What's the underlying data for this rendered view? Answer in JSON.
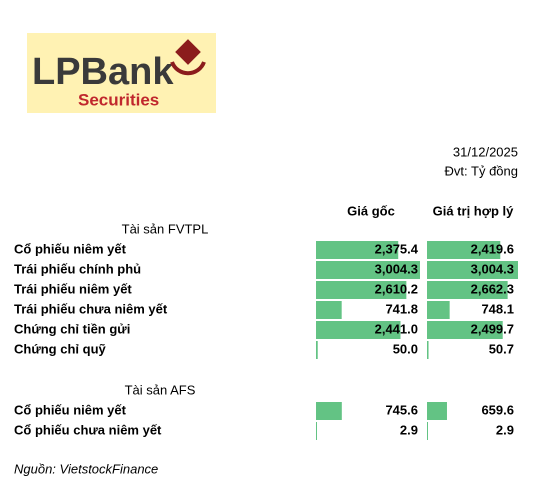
{
  "header": {
    "logo": {
      "brand": "LPBank",
      "sub": "Securities"
    },
    "date": "31/12/2025",
    "unit": "Đvt: Tỷ đồng"
  },
  "table": {
    "columns": [
      "Giá gốc",
      "Giá trị hợp lý"
    ],
    "sections": [
      {
        "title": "Tài sản FVTPL",
        "rows": [
          {
            "label": "Cổ phiếu niêm yết",
            "values": [
              2375.4,
              2419.6
            ],
            "value_labels": [
              "2,375.4",
              "2,419.6"
            ]
          },
          {
            "label": "Trái phiếu chính phủ",
            "values": [
              3004.3,
              3004.3
            ],
            "value_labels": [
              "3,004.3",
              "3,004.3"
            ]
          },
          {
            "label": "Trái phiếu niêm yết",
            "values": [
              2610.2,
              2662.3
            ],
            "value_labels": [
              "2,610.2",
              "2,662.3"
            ]
          },
          {
            "label": "Trái phiếu chưa niêm yết",
            "values": [
              741.8,
              748.1
            ],
            "value_labels": [
              "741.8",
              "748.1"
            ]
          },
          {
            "label": "Chứng chỉ tiền gửi",
            "values": [
              2441.0,
              2499.7
            ],
            "value_labels": [
              "2,441.0",
              "2,499.7"
            ]
          },
          {
            "label": "Chứng chỉ quỹ",
            "values": [
              50.0,
              50.7
            ],
            "value_labels": [
              "50.0",
              "50.7"
            ]
          }
        ]
      },
      {
        "title": "Tài sản AFS",
        "rows": [
          {
            "label": "Cổ phiếu niêm yết",
            "values": [
              745.6,
              659.6
            ],
            "value_labels": [
              "745.6",
              "659.6"
            ]
          },
          {
            "label": "Cổ phiếu chưa niêm yết",
            "values": [
              2.9,
              2.9
            ],
            "value_labels": [
              "2.9",
              "2.9"
            ]
          }
        ]
      }
    ]
  },
  "source": "Nguồn: VietstockFinance"
}
